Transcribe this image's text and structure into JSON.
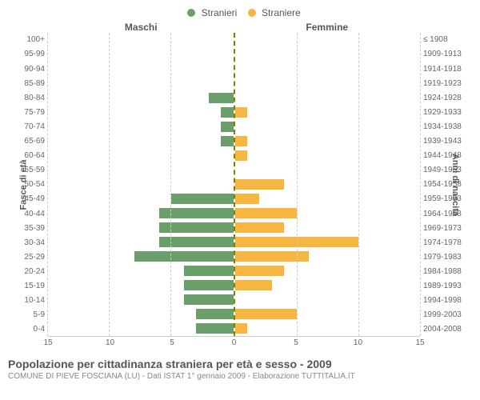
{
  "legend": {
    "male": {
      "label": "Stranieri",
      "color": "#6a9e6a"
    },
    "female": {
      "label": "Straniere",
      "color": "#f5b642"
    }
  },
  "headers": {
    "left": "Maschi",
    "right": "Femmine"
  },
  "axis_titles": {
    "left": "Fasce di età",
    "right": "Anni di nascita"
  },
  "xaxis": {
    "max": 15,
    "ticks": [
      0,
      5,
      10,
      15
    ]
  },
  "grid_color": "#cccccc",
  "center_line_color": "#808000",
  "background": "#ffffff",
  "font_family": "Arial",
  "rows": [
    {
      "age": "100+",
      "year": "≤ 1908",
      "m": 0,
      "f": 0
    },
    {
      "age": "95-99",
      "year": "1909-1913",
      "m": 0,
      "f": 0
    },
    {
      "age": "90-94",
      "year": "1914-1918",
      "m": 0,
      "f": 0
    },
    {
      "age": "85-89",
      "year": "1919-1923",
      "m": 0,
      "f": 0
    },
    {
      "age": "80-84",
      "year": "1924-1928",
      "m": 2,
      "f": 0
    },
    {
      "age": "75-79",
      "year": "1929-1933",
      "m": 1,
      "f": 1
    },
    {
      "age": "70-74",
      "year": "1934-1938",
      "m": 1,
      "f": 0
    },
    {
      "age": "65-69",
      "year": "1939-1943",
      "m": 1,
      "f": 1
    },
    {
      "age": "60-64",
      "year": "1944-1948",
      "m": 0,
      "f": 1
    },
    {
      "age": "55-59",
      "year": "1949-1953",
      "m": 0,
      "f": 0
    },
    {
      "age": "50-54",
      "year": "1954-1958",
      "m": 0,
      "f": 4
    },
    {
      "age": "45-49",
      "year": "1959-1963",
      "m": 5,
      "f": 2
    },
    {
      "age": "40-44",
      "year": "1964-1968",
      "m": 6,
      "f": 5
    },
    {
      "age": "35-39",
      "year": "1969-1973",
      "m": 6,
      "f": 4
    },
    {
      "age": "30-34",
      "year": "1974-1978",
      "m": 6,
      "f": 10
    },
    {
      "age": "25-29",
      "year": "1979-1983",
      "m": 8,
      "f": 6
    },
    {
      "age": "20-24",
      "year": "1984-1988",
      "m": 4,
      "f": 4
    },
    {
      "age": "15-19",
      "year": "1989-1993",
      "m": 4,
      "f": 3
    },
    {
      "age": "10-14",
      "year": "1994-1998",
      "m": 4,
      "f": 0
    },
    {
      "age": "5-9",
      "year": "1999-2003",
      "m": 3,
      "f": 5
    },
    {
      "age": "0-4",
      "year": "2004-2008",
      "m": 3,
      "f": 1
    }
  ],
  "footer": {
    "title": "Popolazione per cittadinanza straniera per età e sesso - 2009",
    "subtitle": "COMUNE DI PIEVE FOSCIANA (LU) - Dati ISTAT 1° gennaio 2009 - Elaborazione TUTTITALIA.IT"
  }
}
